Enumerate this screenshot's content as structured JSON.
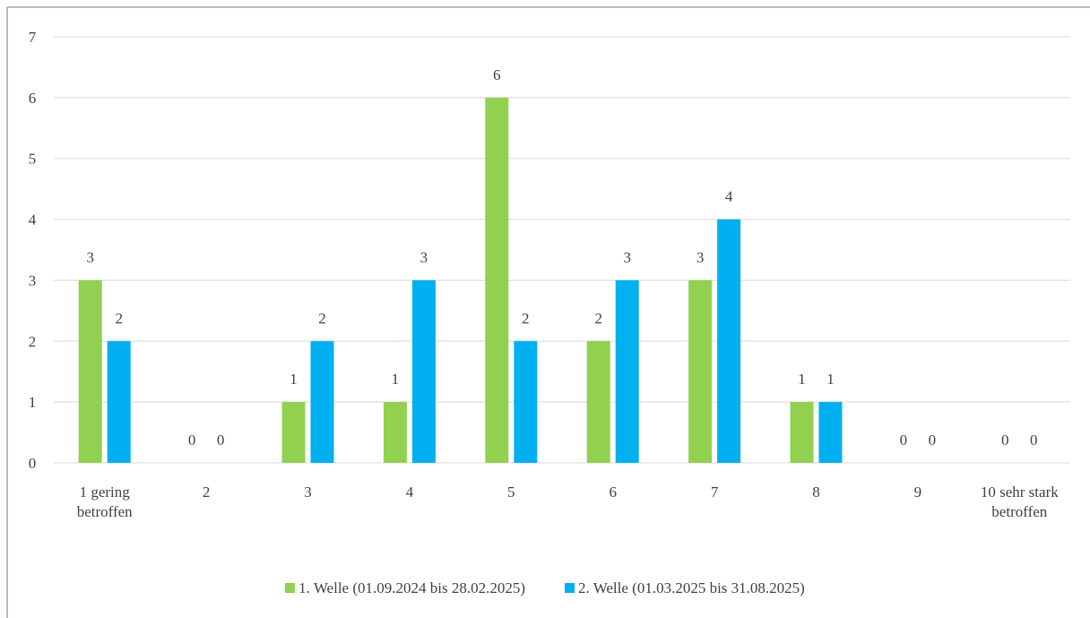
{
  "chart_data": {
    "type": "bar",
    "categories": [
      "1 gering betroffen",
      "2",
      "3",
      "4",
      "5",
      "6",
      "7",
      "8",
      "9",
      "10 sehr stark betroffen"
    ],
    "series": [
      {
        "name": "1. Welle (01.09.2024 bis 28.02.2025)",
        "color": "#92d050",
        "values": [
          3,
          0,
          1,
          1,
          6,
          2,
          3,
          1,
          0,
          0
        ]
      },
      {
        "name": "2. Welle (01.03.2025 bis 31.08.2025)",
        "color": "#00b0f0",
        "values": [
          2,
          0,
          2,
          3,
          2,
          3,
          4,
          1,
          0,
          0
        ]
      }
    ],
    "ylim": [
      0,
      7
    ],
    "yticks": [
      0,
      1,
      2,
      3,
      4,
      5,
      6,
      7
    ],
    "grid": true,
    "legend": "bottom"
  }
}
